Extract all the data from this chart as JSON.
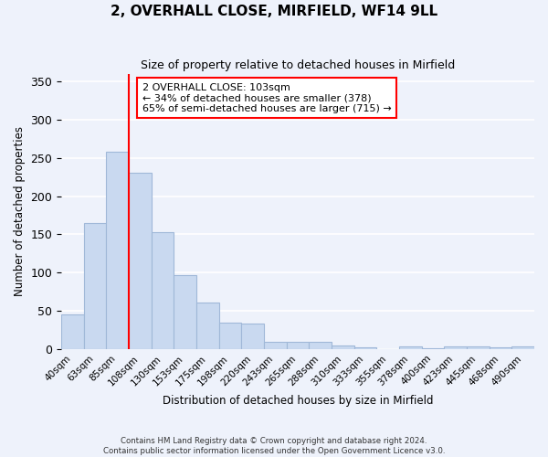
{
  "title": "2, OVERHALL CLOSE, MIRFIELD, WF14 9LL",
  "subtitle": "Size of property relative to detached houses in Mirfield",
  "xlabel": "Distribution of detached houses by size in Mirfield",
  "ylabel": "Number of detached properties",
  "bar_labels": [
    "40sqm",
    "63sqm",
    "85sqm",
    "108sqm",
    "130sqm",
    "153sqm",
    "175sqm",
    "198sqm",
    "220sqm",
    "243sqm",
    "265sqm",
    "288sqm",
    "310sqm",
    "333sqm",
    "355sqm",
    "378sqm",
    "400sqm",
    "423sqm",
    "445sqm",
    "468sqm",
    "490sqm"
  ],
  "bar_values": [
    45,
    165,
    258,
    230,
    153,
    97,
    61,
    35,
    33,
    10,
    10,
    9,
    5,
    2,
    0,
    4,
    1,
    3,
    4,
    2,
    3
  ],
  "bar_color": "#c9d9f0",
  "bar_edge_color": "#a0b8d8",
  "vline_pos": 2.5,
  "vline_color": "red",
  "annotation_text": "2 OVERHALL CLOSE: 103sqm\n← 34% of detached houses are smaller (378)\n65% of semi-detached houses are larger (715) →",
  "annotation_box_color": "white",
  "annotation_box_edge": "red",
  "ylim": [
    0,
    360
  ],
  "yticks": [
    0,
    50,
    100,
    150,
    200,
    250,
    300,
    350
  ],
  "footer_line1": "Contains HM Land Registry data © Crown copyright and database right 2024.",
  "footer_line2": "Contains public sector information licensed under the Open Government Licence v3.0.",
  "background_color": "#eef2fb",
  "grid_color": "white"
}
